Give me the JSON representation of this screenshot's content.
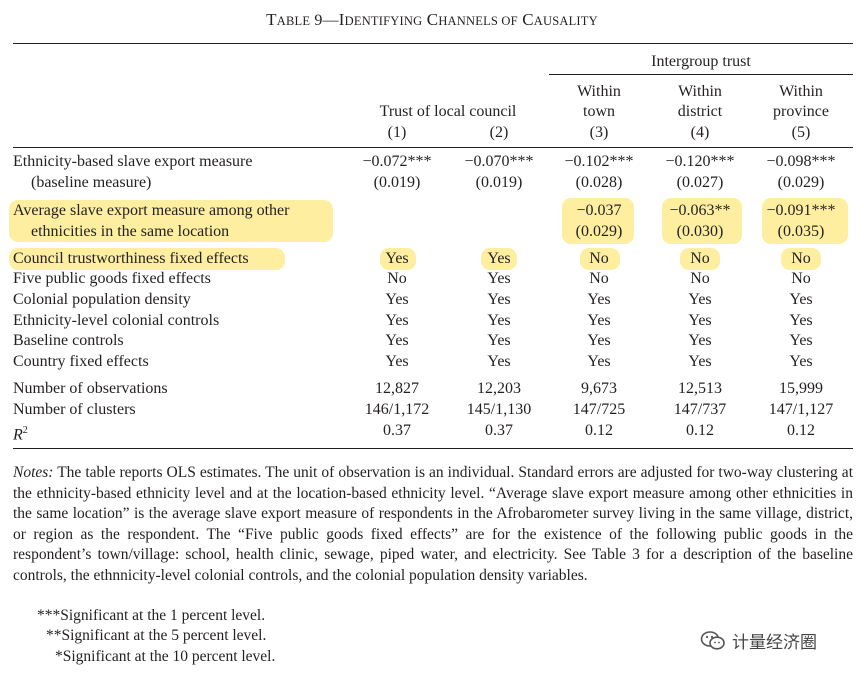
{
  "title": {
    "first_letter": "T",
    "word1_rest": "ABLE",
    "mid": " 9—",
    "i_letter": "I",
    "i_rest": "DENTIFYING",
    "c_letter": " C",
    "c_rest": "HANNELS OF",
    "c2_letter": " C",
    "c2_rest": "AUSALITY"
  },
  "header": {
    "group_trust_local": "Trust of local council",
    "group_intergroup": "Intergroup trust",
    "col3_line1": "Within",
    "col3_line2": "town",
    "col4_line1": "Within",
    "col4_line2": "district",
    "col5_line1": "Within",
    "col5_line2": "province",
    "col_numbers": [
      "(1)",
      "(2)",
      "(3)",
      "(4)",
      "(5)"
    ]
  },
  "rows": {
    "r1": {
      "label": "Ethnicity-based slave export measure",
      "cells": [
        "−0.072***",
        "−0.070***",
        "−0.102***",
        "−0.120***",
        "−0.098***"
      ]
    },
    "r1se": {
      "label": "(baseline measure)",
      "cells": [
        "(0.019)",
        "(0.019)",
        "(0.028)",
        "(0.027)",
        "(0.029)"
      ]
    },
    "r2": {
      "label": "Average slave export measure among other",
      "cells": [
        "",
        "",
        "−0.037",
        "−0.063**",
        "−0.091***"
      ]
    },
    "r2se": {
      "label": "ethnicities in the same location",
      "cells": [
        "",
        "",
        "(0.029)",
        "(0.030)",
        "(0.035)"
      ]
    },
    "r3": {
      "label": "Council trustworthiness fixed effects",
      "cells": [
        "Yes",
        "Yes",
        "No",
        "No",
        "No"
      ]
    },
    "r4": {
      "label": "Five public goods fixed effects",
      "cells": [
        "No",
        "Yes",
        "No",
        "No",
        "No"
      ]
    },
    "r5": {
      "label": "Colonial population density",
      "cells": [
        "Yes",
        "Yes",
        "Yes",
        "Yes",
        "Yes"
      ]
    },
    "r6": {
      "label": "Ethnicity-level colonial controls",
      "cells": [
        "Yes",
        "Yes",
        "Yes",
        "Yes",
        "Yes"
      ]
    },
    "r7": {
      "label": "Baseline controls",
      "cells": [
        "Yes",
        "Yes",
        "Yes",
        "Yes",
        "Yes"
      ]
    },
    "r8": {
      "label": "Country fixed effects",
      "cells": [
        "Yes",
        "Yes",
        "Yes",
        "Yes",
        "Yes"
      ]
    },
    "r9": {
      "label": "Number of observations",
      "cells": [
        "12,827",
        "12,203",
        "9,673",
        "12,513",
        "15,999"
      ]
    },
    "r10": {
      "label": "Number of clusters",
      "cells": [
        "146/1,172",
        "145/1,130",
        "147/725",
        "147/737",
        "147/1,127"
      ]
    },
    "r11": {
      "label_base": "R",
      "label_sup": "2",
      "cells": [
        "0.37",
        "0.37",
        "0.12",
        "0.12",
        "0.12"
      ]
    }
  },
  "notes": {
    "lead": "Notes:",
    "body": " The table reports OLS estimates. The unit of observation is an individual. Standard errors are adjusted for two-way clustering at the ethnicity-based ethnicity level and at the location-based ethnicity level. “Average slave export measure among other ethnicities in the same location” is the average slave export measure of respondents in the Afrobarometer survey living in the same village, district, or region as the respondent. The “Five public goods fixed effects” are for the existence of the following public goods in the respondent’s town/village: school, health clinic, sewage, piped water, and electricity. See Table 3 for a description of the baseline controls, the ethnnicity-level colonial controls, and the colonial population density variables."
  },
  "significance": [
    {
      "stars": "***",
      "text": "Significant at the 1 percent level."
    },
    {
      "stars": "**",
      "text": "Significant at the 5 percent level."
    },
    {
      "stars": "*",
      "text": "Significant at the 10 percent level."
    }
  ],
  "watermark": {
    "icon": "wechat-icon",
    "text": "计量经济圈"
  },
  "colors": {
    "highlight": "#fdeea0",
    "text": "#231f20"
  }
}
